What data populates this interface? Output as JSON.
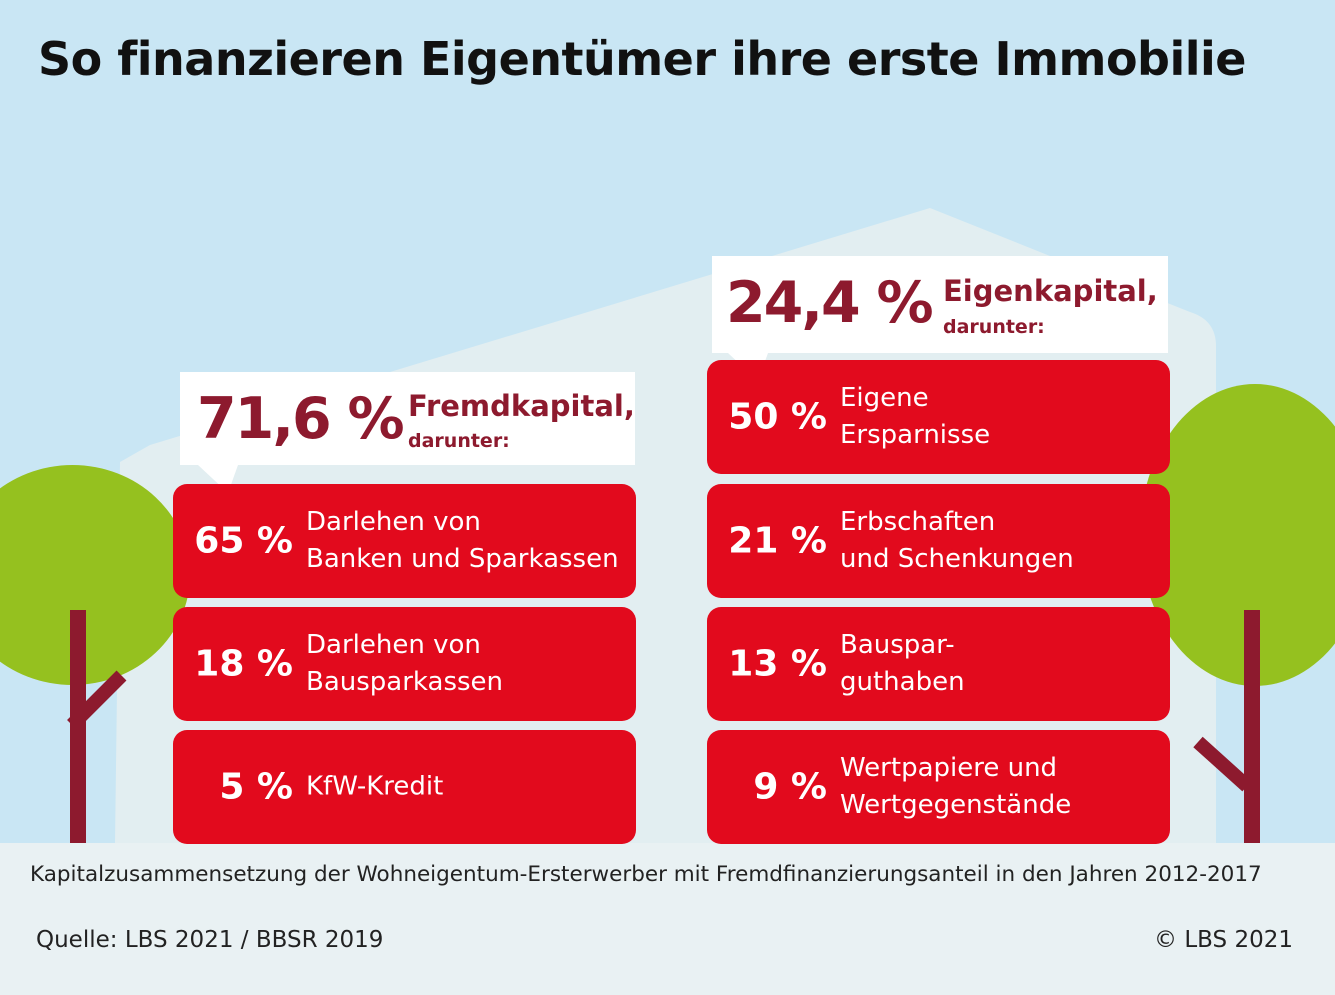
{
  "title": "So finanzieren Eigentümer ihre erste Immobilie",
  "caption": "Kapitalzusammensetzung der Wohneigentum-Ersterwerber mit Fremdfinanzierungsanteil in den Jahren 2012-2017",
  "source": "Quelle: LBS 2021 / BBSR 2019",
  "copyright": "© LBS 2021",
  "colors": {
    "bar": "#e20a1d",
    "heading": "#8d1a2e",
    "tree": "#95c11f",
    "sky": "#c9e6f4"
  },
  "chart_data": {
    "type": "table",
    "title": "So finanzieren Eigentümer ihre erste Immobilie",
    "groups": [
      {
        "name": "Fremdkapital,",
        "share": "71,6 %",
        "share_value": 71.6,
        "sub": "darunter:",
        "items": [
          {
            "pct": "65 %",
            "value": 65,
            "label_lines": [
              "Darlehen von",
              "Banken und Sparkassen"
            ]
          },
          {
            "pct": "18 %",
            "value": 18,
            "label_lines": [
              "Darlehen von",
              "Bausparkassen"
            ]
          },
          {
            "pct": "5 %",
            "value": 5,
            "label_lines": [
              "KfW-Kredit"
            ]
          }
        ]
      },
      {
        "name": "Eigenkapital,",
        "share": "24,4 %",
        "share_value": 24.4,
        "sub": "darunter:",
        "items": [
          {
            "pct": "50 %",
            "value": 50,
            "label_lines": [
              "Eigene",
              "Ersparnisse"
            ]
          },
          {
            "pct": "21 %",
            "value": 21,
            "label_lines": [
              "Erbschaften",
              "und Schenkungen"
            ]
          },
          {
            "pct": "13 %",
            "value": 13,
            "label_lines": [
              "Bauspar-",
              "guthaben"
            ]
          },
          {
            "pct": "9 %",
            "value": 9,
            "label_lines": [
              "Wertpapiere und",
              "Wertgegenstände"
            ]
          }
        ]
      }
    ]
  }
}
